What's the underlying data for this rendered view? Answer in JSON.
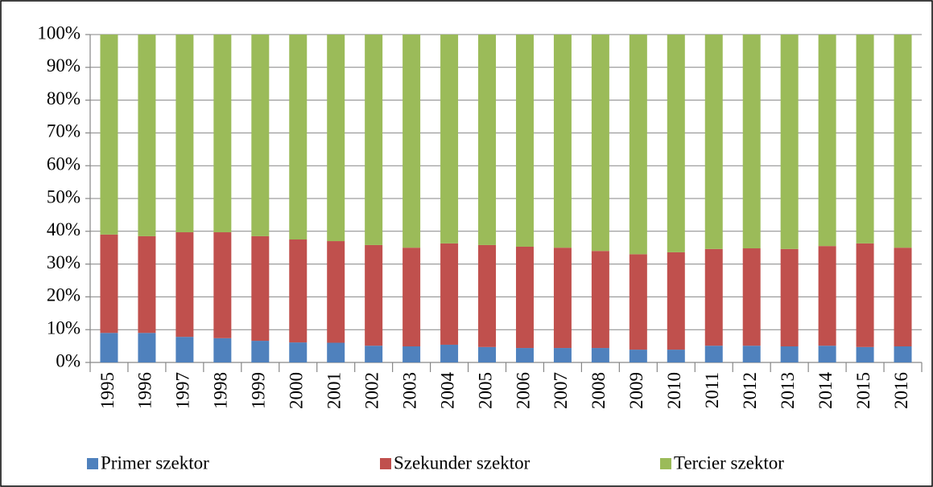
{
  "chart_data": {
    "type": "stacked_bar_100",
    "categories": [
      "1995",
      "1996",
      "1997",
      "1998",
      "1999",
      "2000",
      "2001",
      "2002",
      "2003",
      "2004",
      "2005",
      "2006",
      "2007",
      "2008",
      "2009",
      "2010",
      "2011",
      "2012",
      "2013",
      "2014",
      "2015",
      "2016"
    ],
    "series": [
      {
        "name": "Primer szektor",
        "color": "#4f81bd",
        "values": [
          9,
          9,
          7.8,
          7.4,
          6.6,
          6.1,
          6,
          5.1,
          4.9,
          5.4,
          4.7,
          4.4,
          4.4,
          4.4,
          3.9,
          3.9,
          5.1,
          5.1,
          4.9,
          5.1,
          4.7,
          4.9
        ]
      },
      {
        "name": "Szekunder szektor",
        "color": "#c0504d",
        "values": [
          30,
          29.5,
          31.9,
          32.3,
          31.9,
          31.4,
          31,
          30.7,
          30.1,
          30.9,
          31.1,
          30.9,
          30.6,
          29.6,
          29.1,
          29.7,
          29.5,
          29.7,
          29.7,
          30.4,
          31.6,
          30.1
        ]
      },
      {
        "name": "Tercier szektor",
        "color": "#9bbb59",
        "values": [
          61,
          61.5,
          60.3,
          60.3,
          61.5,
          62.5,
          63,
          64.2,
          65,
          63.7,
          64.2,
          64.7,
          65,
          66,
          67,
          66.4,
          65.4,
          65.2,
          65.4,
          64.5,
          63.7,
          65
        ]
      }
    ],
    "ylim": [
      0,
      100
    ],
    "yticks": [
      {
        "value": 0,
        "label": "0%"
      },
      {
        "value": 10,
        "label": "10%"
      },
      {
        "value": 20,
        "label": "20%"
      },
      {
        "value": 30,
        "label": "30%"
      },
      {
        "value": 40,
        "label": "40%"
      },
      {
        "value": 50,
        "label": "50%"
      },
      {
        "value": 60,
        "label": "60%"
      },
      {
        "value": 70,
        "label": "70%"
      },
      {
        "value": 80,
        "label": "80%"
      },
      {
        "value": 90,
        "label": "90%"
      },
      {
        "value": 100,
        "label": "100%"
      }
    ],
    "grid": true,
    "legend": "bottom"
  }
}
